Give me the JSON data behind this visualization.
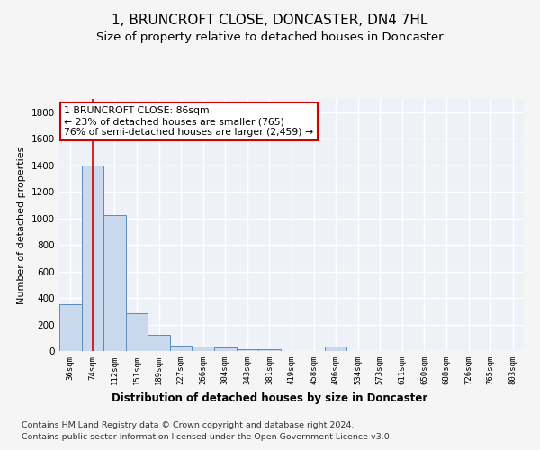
{
  "title": "1, BRUNCROFT CLOSE, DONCASTER, DN4 7HL",
  "subtitle": "Size of property relative to detached houses in Doncaster",
  "xlabel": "Distribution of detached houses by size in Doncaster",
  "ylabel": "Number of detached properties",
  "categories": [
    "36sqm",
    "74sqm",
    "112sqm",
    "151sqm",
    "189sqm",
    "227sqm",
    "266sqm",
    "304sqm",
    "343sqm",
    "381sqm",
    "419sqm",
    "458sqm",
    "496sqm",
    "534sqm",
    "573sqm",
    "611sqm",
    "650sqm",
    "688sqm",
    "726sqm",
    "765sqm",
    "803sqm"
  ],
  "values": [
    350,
    1400,
    1025,
    285,
    125,
    38,
    35,
    25,
    15,
    12,
    0,
    0,
    35,
    0,
    0,
    0,
    0,
    0,
    0,
    0,
    0
  ],
  "bar_color": "#cad9ed",
  "bar_edge_color": "#5b8db8",
  "red_line_x": 1,
  "annotation_line1": "1 BRUNCROFT CLOSE: 86sqm",
  "annotation_line2": "← 23% of detached houses are smaller (765)",
  "annotation_line3": "76% of semi-detached houses are larger (2,459) →",
  "annotation_box_color": "#ffffff",
  "annotation_box_edge": "#cc0000",
  "footer1": "Contains HM Land Registry data © Crown copyright and database right 2024.",
  "footer2": "Contains public sector information licensed under the Open Government Licence v3.0.",
  "ylim": [
    0,
    1900
  ],
  "yticks": [
    0,
    200,
    400,
    600,
    800,
    1000,
    1200,
    1400,
    1600,
    1800
  ],
  "bg_color": "#eef2f8",
  "grid_color": "#ffffff",
  "title_fontsize": 11,
  "subtitle_fontsize": 9.5,
  "red_line_color": "#cc0000",
  "fig_bg": "#f5f5f5"
}
